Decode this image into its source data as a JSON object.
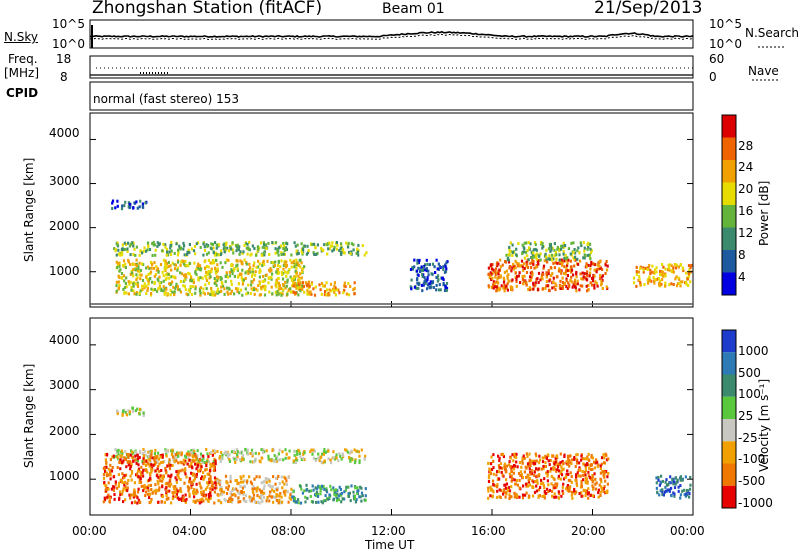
{
  "header": {
    "station": "Zhongshan Station (fitACF)",
    "beam": "Beam 01",
    "date": "21/Sep/2013"
  },
  "top_panel": {
    "left_label": "N.Sky",
    "right_label": "N.Search",
    "left_ticks": [
      "10^5",
      "10^0"
    ],
    "right_ticks": [
      "10^5",
      "10^0"
    ]
  },
  "freq_panel": {
    "left_label_1": "Freq.",
    "left_label_2": "[MHz]",
    "left_ticks": [
      "18",
      "8"
    ],
    "right_ticks": [
      "60",
      "0"
    ],
    "right_label": "Nave"
  },
  "cpid": {
    "label": "CPID",
    "text": "normal (fast stereo) 153"
  },
  "chart_data": [
    {
      "type": "heatmap",
      "name": "Power",
      "ylabel": "Slant Range [km]",
      "ylim": [
        200,
        4600
      ],
      "yticks": [
        "1000",
        "2000",
        "3000",
        "4000"
      ],
      "colorbar_label": "Power [dB]",
      "colorbar_ticks": [
        "4",
        "8",
        "12",
        "16",
        "20",
        "24",
        "28"
      ],
      "colors": [
        "#0000e0",
        "#1e5aa0",
        "#3c8a6e",
        "#64b43c",
        "#e6dc00",
        "#f0a000",
        "#f06400",
        "#dc0000"
      ],
      "clusters": [
        {
          "t0": 0.9,
          "t1": 11.0,
          "r0": 1400,
          "r1": 1700,
          "level": 3
        },
        {
          "t0": 1.0,
          "t1": 8.5,
          "r0": 500,
          "r1": 1300,
          "level": 4
        },
        {
          "t0": 8.0,
          "t1": 10.5,
          "r0": 500,
          "r1": 800,
          "level": 5
        },
        {
          "t0": 0.8,
          "t1": 2.2,
          "r0": 2450,
          "r1": 2650,
          "level": 1
        },
        {
          "t0": 15.8,
          "t1": 20.6,
          "r0": 600,
          "r1": 1300,
          "level": 6
        },
        {
          "t0": 16.5,
          "t1": 20.0,
          "r0": 1300,
          "r1": 1700,
          "level": 3
        },
        {
          "t0": 21.6,
          "t1": 23.9,
          "r0": 700,
          "r1": 1200,
          "level": 5
        },
        {
          "t0": 12.7,
          "t1": 14.2,
          "r0": 600,
          "r1": 1300,
          "level": 1
        }
      ]
    },
    {
      "type": "heatmap",
      "name": "Velocity",
      "ylabel": "Slant Range [km]",
      "ylim": [
        200,
        4600
      ],
      "yticks": [
        "1000",
        "2000",
        "3000",
        "4000"
      ],
      "colorbar_label": "Velocity [m s⁻¹]",
      "colorbar_ticks": [
        "1000",
        "500",
        "100",
        "25",
        "-25",
        "-100",
        "-500",
        "-1000"
      ],
      "colors": [
        "#1e3ccc",
        "#2e7ab4",
        "#3c8a6e",
        "#5ac83c",
        "#c8c8c0",
        "#f0a000",
        "#f07800",
        "#e60000"
      ],
      "clusters": [
        {
          "t0": 0.9,
          "t1": 11.0,
          "r0": 1400,
          "r1": 1700,
          "level": 4
        },
        {
          "t0": 1.0,
          "t1": 2.2,
          "r0": 2450,
          "r1": 2650,
          "level": 4
        },
        {
          "t0": 0.5,
          "t1": 5.0,
          "r0": 500,
          "r1": 1600,
          "level": 6
        },
        {
          "t0": 5.0,
          "t1": 8.0,
          "r0": 500,
          "r1": 1100,
          "level": 5
        },
        {
          "t0": 8.0,
          "t1": 11.0,
          "r0": 500,
          "r1": 900,
          "level": 2
        },
        {
          "t0": 15.8,
          "t1": 20.6,
          "r0": 600,
          "r1": 1600,
          "level": 6
        },
        {
          "t0": 22.5,
          "t1": 23.9,
          "r0": 600,
          "r1": 1100,
          "level": 1
        }
      ]
    }
  ],
  "x_axis": {
    "ticks": [
      "00:00",
      "04:00",
      "08:00",
      "12:00",
      "16:00",
      "20:00",
      "00:00"
    ],
    "label": "Time UT"
  }
}
